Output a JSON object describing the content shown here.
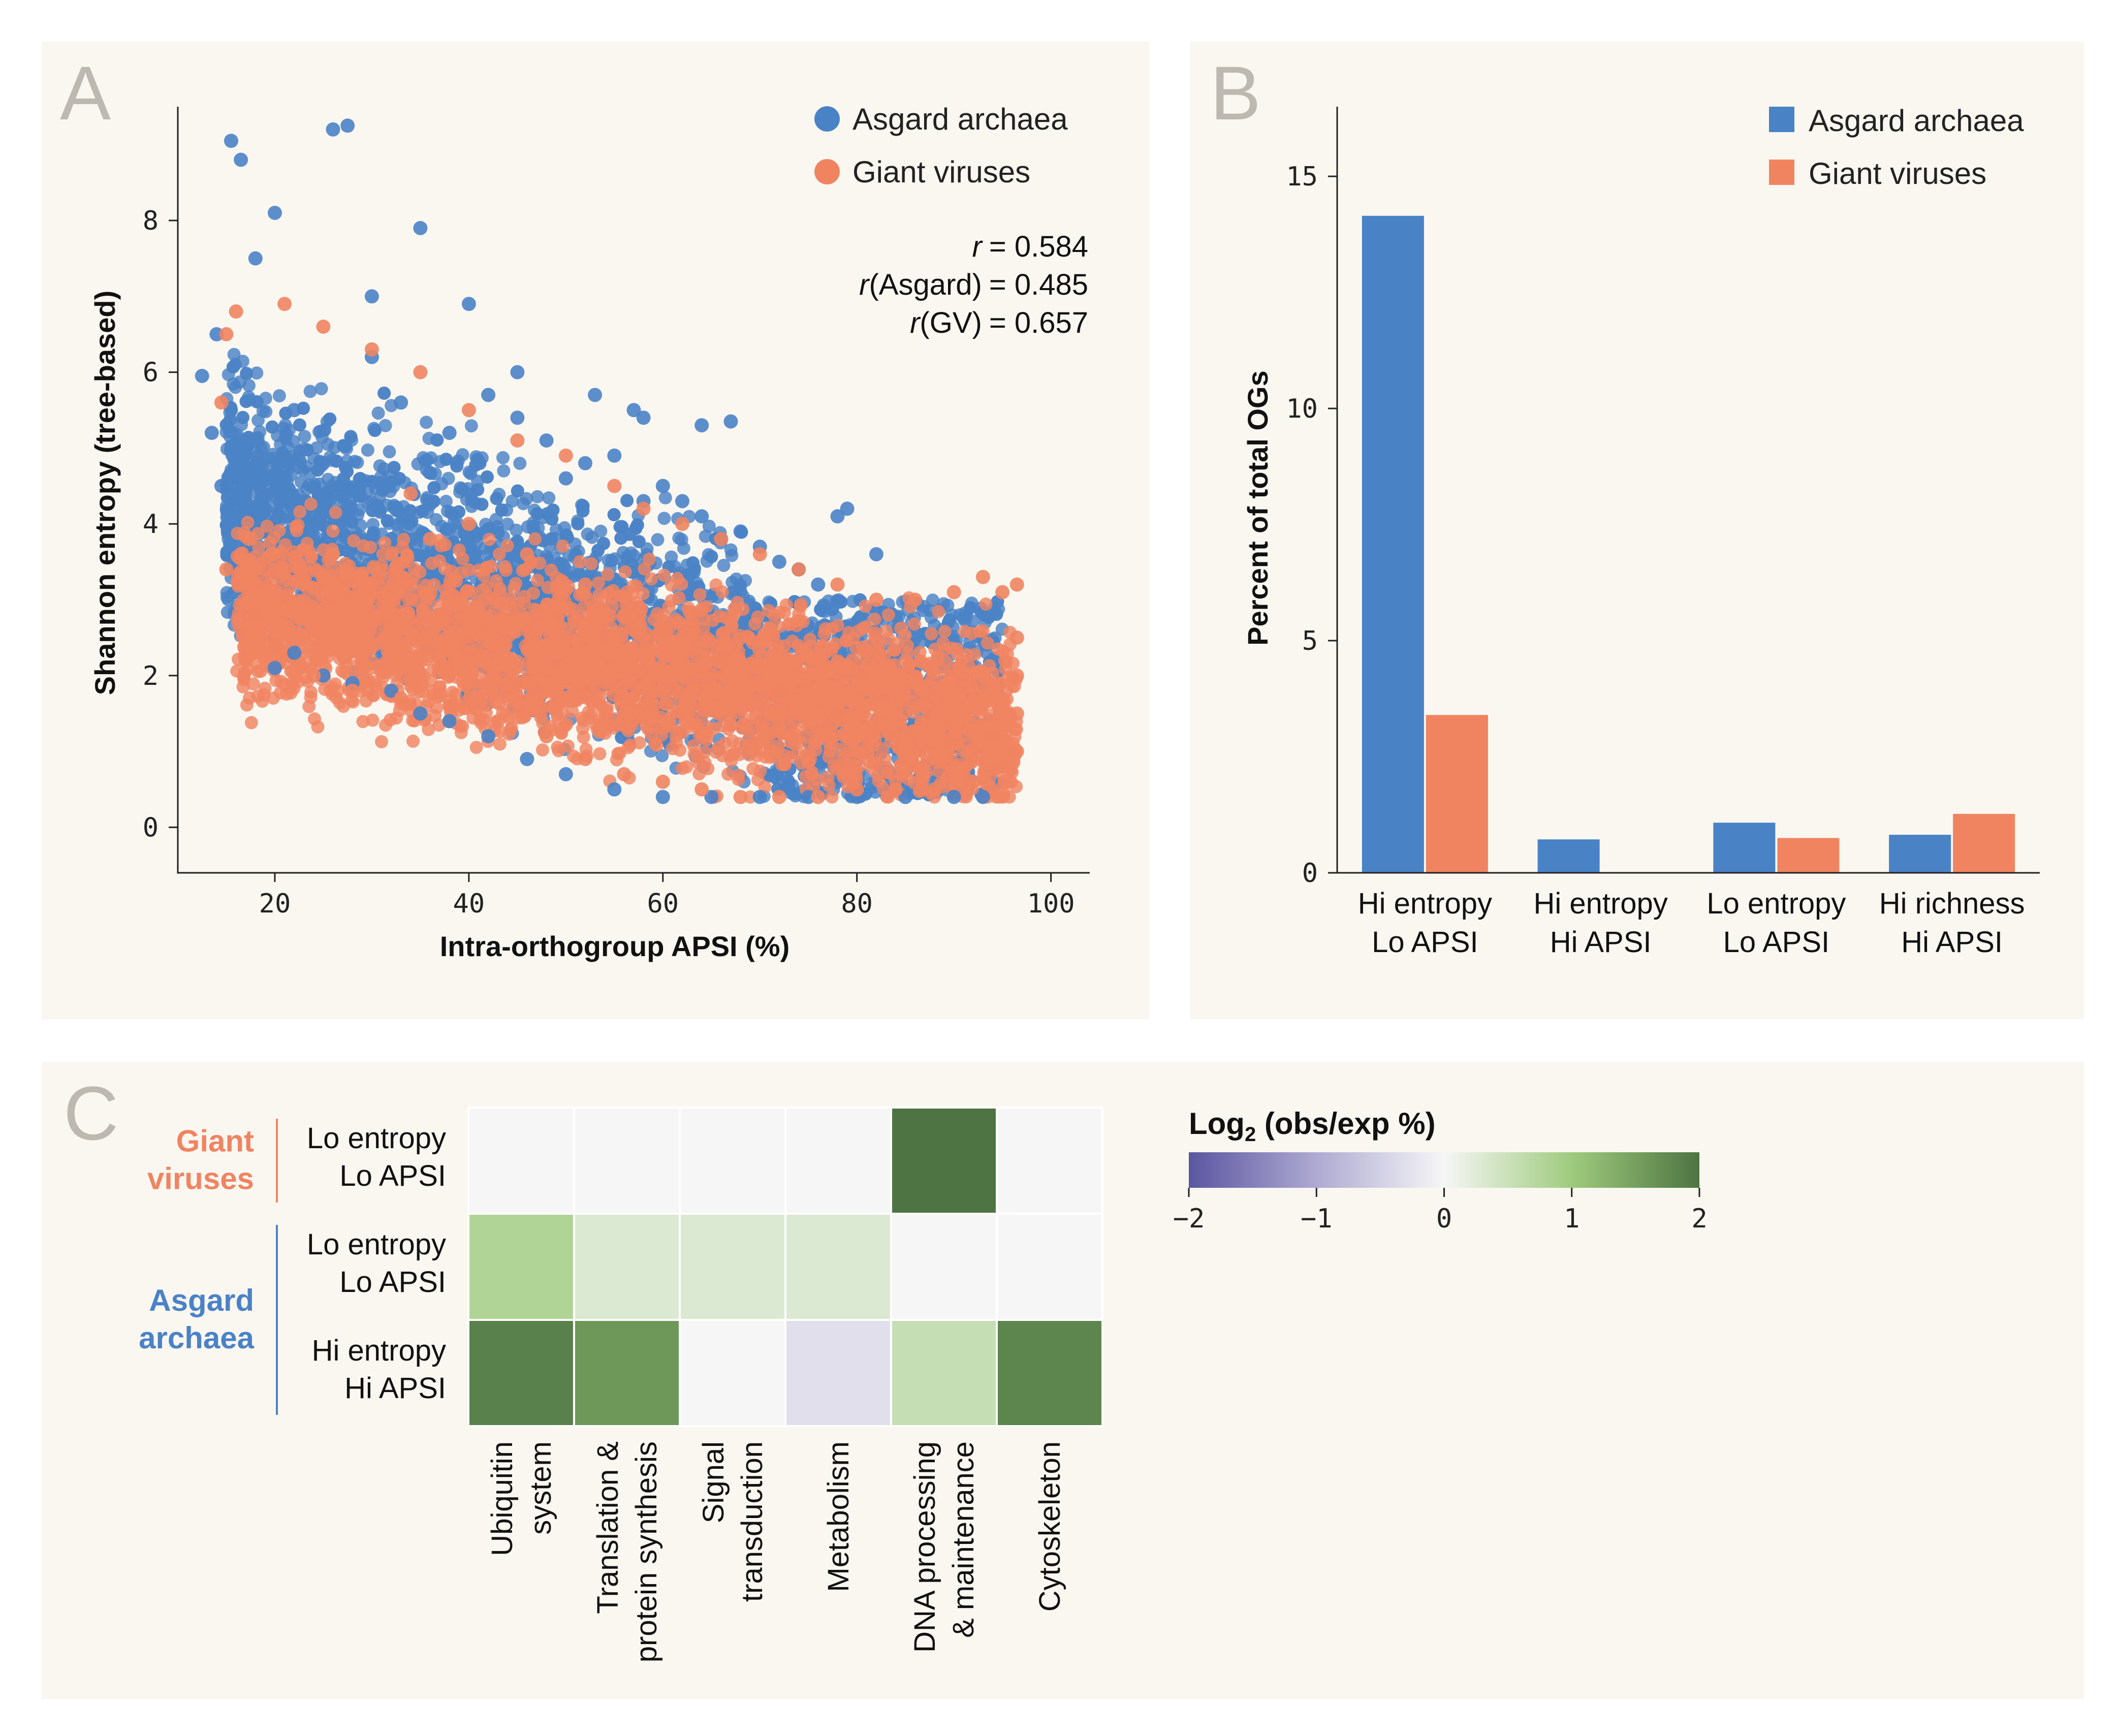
{
  "panels": {
    "a": "A",
    "b": "B",
    "c": "C"
  },
  "colors": {
    "asgard": "#4a82c6",
    "gv": "#f08461",
    "background": "#faf7f1"
  },
  "chart_data": [
    {
      "id": "scatter",
      "type": "scatter",
      "xlabel": "Intra-orthogroup APSI (%)",
      "ylabel": "Shannon entropy (tree-based)",
      "xlim": [
        10,
        104
      ],
      "ylim": [
        -0.6,
        9.5
      ],
      "xticks": [
        "20",
        "40",
        "60",
        "80",
        "100"
      ],
      "yticks": [
        "0",
        "2",
        "4",
        "6",
        "8"
      ],
      "legend": [
        "Asgard archaea",
        "Giant viruses"
      ],
      "legend_position": "top-right",
      "stats": {
        "r_sym": "r",
        "r_all": "= 0.584",
        "r_asgard_label": "(Asgard)",
        "r_asgard": "= 0.485",
        "r_gv_label": "(GV)",
        "r_gv": "= 0.657"
      },
      "series": [
        {
          "name": "Asgard archaea",
          "points": [
            [
              15.5,
              9.05
            ],
            [
              16.5,
              8.8
            ],
            [
              26,
              9.2
            ],
            [
              27.5,
              9.25
            ],
            [
              12.5,
              5.95
            ],
            [
              13.5,
              5.2
            ],
            [
              14,
              6.5
            ],
            [
              14.5,
              4.5
            ],
            [
              35,
              7.9
            ],
            [
              40,
              6.9
            ],
            [
              22,
              5.5
            ],
            [
              25,
              4.8
            ],
            [
              30,
              6.2
            ],
            [
              33,
              5.6
            ],
            [
              38,
              5.2
            ],
            [
              42,
              5.7
            ],
            [
              45,
              5.4
            ],
            [
              48,
              5.1
            ],
            [
              50,
              4.6
            ],
            [
              52,
              4.8
            ],
            [
              55,
              4.9
            ],
            [
              58,
              4.3
            ],
            [
              60,
              4.5
            ],
            [
              62,
              4.3
            ],
            [
              64,
              4.1
            ],
            [
              66,
              3.8
            ],
            [
              68,
              3.9
            ],
            [
              70,
              3.7
            ],
            [
              72,
              3.5
            ],
            [
              74,
              3.4
            ],
            [
              76,
              3.2
            ],
            [
              78,
              4.1
            ],
            [
              79,
              4.2
            ],
            [
              82,
              3.6
            ],
            [
              20,
              2.1
            ],
            [
              22,
              2.3
            ],
            [
              25,
              2.0
            ],
            [
              28,
              1.9
            ],
            [
              32,
              1.8
            ],
            [
              35,
              1.5
            ],
            [
              38,
              1.4
            ],
            [
              42,
              1.2
            ],
            [
              46,
              0.9
            ],
            [
              50,
              0.7
            ],
            [
              55,
              0.5
            ],
            [
              60,
              0.4
            ],
            [
              65,
              0.4
            ],
            [
              70,
              0.4
            ],
            [
              75,
              0.4
            ],
            [
              80,
              0.4
            ],
            [
              85,
              0.4
            ],
            [
              90,
              0.4
            ],
            [
              93,
              0.4
            ],
            [
              53,
              5.7
            ],
            [
              57,
              5.5
            ],
            [
              58,
              5.4
            ],
            [
              67,
              5.35
            ],
            [
              64,
              5.3
            ],
            [
              45,
              6.0
            ],
            [
              30,
              7.0
            ],
            [
              18,
              7.5
            ],
            [
              20,
              8.1
            ]
          ]
        },
        {
          "name": "Giant viruses",
          "points": [
            [
              14.5,
              5.6
            ],
            [
              15,
              6.5
            ],
            [
              16,
              6.8
            ],
            [
              21,
              6.9
            ],
            [
              25,
              6.6
            ],
            [
              30,
              6.3
            ],
            [
              35,
              6.0
            ],
            [
              40,
              5.5
            ],
            [
              45,
              5.1
            ],
            [
              50,
              4.9
            ],
            [
              55,
              4.5
            ],
            [
              58,
              4.2
            ],
            [
              62,
              4.0
            ],
            [
              66,
              3.8
            ],
            [
              70,
              3.6
            ],
            [
              74,
              3.4
            ],
            [
              78,
              3.2
            ],
            [
              82,
              3.0
            ],
            [
              86,
              3.0
            ],
            [
              90,
              3.1
            ],
            [
              93,
              3.3
            ],
            [
              95,
              3.1
            ],
            [
              96.5,
              3.2
            ],
            [
              96.5,
              2.5
            ],
            [
              96.5,
              2.0
            ],
            [
              96.5,
              1.5
            ],
            [
              96.5,
              1.0
            ],
            [
              15,
              3.4
            ],
            [
              18,
              2.8
            ],
            [
              20,
              2.4
            ],
            [
              24,
              2.0
            ],
            [
              28,
              1.8
            ],
            [
              33,
              1.7
            ],
            [
              38,
              1.6
            ],
            [
              43,
              1.4
            ],
            [
              48,
              1.2
            ],
            [
              52,
              0.9
            ],
            [
              56,
              0.7
            ],
            [
              60,
              0.6
            ],
            [
              64,
              0.5
            ],
            [
              68,
              0.4
            ],
            [
              72,
              0.4
            ],
            [
              76,
              0.4
            ],
            [
              80,
              0.5
            ],
            [
              84,
              0.5
            ],
            [
              88,
              0.5
            ],
            [
              92,
              0.6
            ],
            [
              95,
              0.8
            ],
            [
              34,
              4.4
            ],
            [
              36,
              3.8
            ],
            [
              40,
              4.0
            ],
            [
              46,
              3.6
            ],
            [
              52,
              3.2
            ],
            [
              56,
              2.8
            ],
            [
              60,
              2.6
            ],
            [
              66,
              2.2
            ],
            [
              72,
              1.8
            ],
            [
              78,
              1.5
            ],
            [
              84,
              1.2
            ],
            [
              90,
              1.1
            ],
            [
              94,
              1.2
            ],
            [
              26,
              3.6
            ]
          ]
        }
      ]
    },
    {
      "id": "bars",
      "type": "bar",
      "ylabel": "Percent of total OGs",
      "ylim": [
        0,
        16.5
      ],
      "yticks": [
        "0",
        "5",
        "10",
        "15"
      ],
      "categories": [
        [
          "Hi entropy",
          "Lo APSI"
        ],
        [
          "Hi entropy",
          "Hi APSI"
        ],
        [
          "Lo entropy",
          "Lo APSI"
        ],
        [
          "Hi richness",
          "Hi APSI"
        ]
      ],
      "legend": [
        "Asgard archaea",
        "Giant viruses"
      ],
      "legend_position": "top-right",
      "series": [
        {
          "name": "Asgard archaea",
          "values": [
            14.15,
            0.72,
            1.08,
            0.82
          ]
        },
        {
          "name": "Giant viruses",
          "values": [
            3.4,
            0.0,
            0.75,
            1.27
          ]
        }
      ]
    },
    {
      "id": "heatmap",
      "type": "heatmap",
      "title": "Log₂ (obs/exp %)",
      "title_main": "Log",
      "title_sub": "2",
      "title_rest": " (obs/exp %)",
      "colorbar_range": [
        -2,
        2
      ],
      "colorbar_ticks": [
        "−2",
        "−1",
        "0",
        "1",
        "2"
      ],
      "columns": [
        [
          "Ubiquitin",
          "system"
        ],
        [
          "Translation &",
          "protein synthesis"
        ],
        [
          "Signal",
          "transduction"
        ],
        [
          "Metabolism"
        ],
        [
          "DNA processing",
          "& maintenance"
        ],
        [
          "Cytoskeleton"
        ]
      ],
      "groups": [
        {
          "label": [
            "Giant",
            "viruses"
          ],
          "color": "#f08461",
          "rows": 1
        },
        {
          "label": [
            "Asgard",
            "archaea"
          ],
          "color": "#4a82c6",
          "rows": 2
        }
      ],
      "rows": [
        {
          "label": [
            "Lo entropy",
            "Lo APSI"
          ],
          "values": [
            0.0,
            0.0,
            0.0,
            0.0,
            2.0,
            0.0
          ]
        },
        {
          "label": [
            "Lo entropy",
            "Lo APSI"
          ],
          "values": [
            0.8,
            0.3,
            0.3,
            0.3,
            0.0,
            0.0
          ]
        },
        {
          "label": [
            "Hi entropy",
            "Hi APSI"
          ],
          "values": [
            1.85,
            1.6,
            0.0,
            -0.3,
            0.55,
            1.8
          ]
        }
      ]
    }
  ]
}
